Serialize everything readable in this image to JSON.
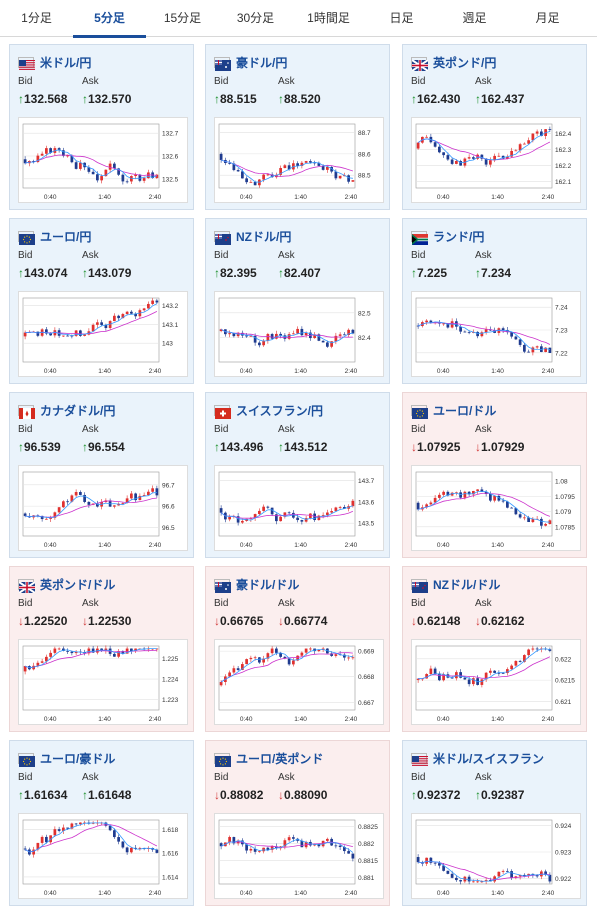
{
  "tabs": [
    {
      "label": "1分足",
      "active": false
    },
    {
      "label": "5分足",
      "active": true
    },
    {
      "label": "15分足",
      "active": false
    },
    {
      "label": "30分足",
      "active": false
    },
    {
      "label": "1時間足",
      "active": false
    },
    {
      "label": "日足",
      "active": false
    },
    {
      "label": "週足",
      "active": false
    },
    {
      "label": "月足",
      "active": false
    }
  ],
  "labels": {
    "bid": "Bid",
    "ask": "Ask"
  },
  "colors": {
    "up": "#1a8f2a",
    "down": "#d23a3a",
    "link": "#1a4e9b",
    "ma_long": "#cc33cc",
    "ma_short": "#3399ff"
  },
  "pairs": [
    {
      "name": "米ドル/円",
      "flag": "us",
      "direction": "up",
      "bid": "132.568",
      "ask": "132.570",
      "chart_data": {
        "type": "candlestick",
        "x_ticks": [
          "0:40",
          "1:40",
          "2:40"
        ],
        "y_ticks": [
          "132.7",
          "132.6",
          "132.5"
        ],
        "ylim": [
          132.46,
          132.74
        ]
      }
    },
    {
      "name": "豪ドル/円",
      "flag": "au",
      "direction": "up",
      "bid": "88.515",
      "ask": "88.520",
      "chart_data": {
        "type": "candlestick",
        "x_ticks": [
          "0:40",
          "1:40",
          "2:40"
        ],
        "y_ticks": [
          "88.7",
          "88.6",
          "88.5"
        ],
        "ylim": [
          88.44,
          88.74
        ]
      }
    },
    {
      "name": "英ポンド/円",
      "flag": "gb",
      "direction": "up",
      "bid": "162.430",
      "ask": "162.437",
      "chart_data": {
        "type": "candlestick",
        "x_ticks": [
          "0:40",
          "1:40",
          "2:40"
        ],
        "y_ticks": [
          "162.4",
          "162.3",
          "162.2",
          "162.1"
        ],
        "ylim": [
          162.06,
          162.46
        ]
      }
    },
    {
      "name": "ユーロ/円",
      "flag": "eu",
      "direction": "up",
      "bid": "143.074",
      "ask": "143.079",
      "chart_data": {
        "type": "candlestick",
        "x_ticks": [
          "0:40",
          "1:40",
          "2:40"
        ],
        "y_ticks": [
          "143.2",
          "143.1",
          "143"
        ],
        "ylim": [
          142.9,
          143.24
        ]
      }
    },
    {
      "name": "NZドル/円",
      "flag": "nz",
      "direction": "up",
      "bid": "82.395",
      "ask": "82.407",
      "chart_data": {
        "type": "candlestick",
        "x_ticks": [
          "0:40",
          "1:40",
          "2:40"
        ],
        "y_ticks": [
          "82.5",
          "82.4"
        ],
        "ylim": [
          82.3,
          82.56
        ]
      }
    },
    {
      "name": "ランド/円",
      "flag": "za",
      "direction": "up",
      "bid": "7.225",
      "ask": "7.234",
      "chart_data": {
        "type": "candlestick",
        "x_ticks": [
          "0:40",
          "1:40",
          "2:40"
        ],
        "y_ticks": [
          "7.24",
          "7.23",
          "7.22"
        ],
        "ylim": [
          7.216,
          7.244
        ]
      }
    },
    {
      "name": "カナダドル/円",
      "flag": "ca",
      "direction": "up",
      "bid": "96.539",
      "ask": "96.554",
      "chart_data": {
        "type": "candlestick",
        "x_ticks": [
          "0:40",
          "1:40",
          "2:40"
        ],
        "y_ticks": [
          "96.7",
          "96.6",
          "96.5"
        ],
        "ylim": [
          96.46,
          96.76
        ]
      }
    },
    {
      "name": "スイスフラン/円",
      "flag": "ch",
      "direction": "up",
      "bid": "143.496",
      "ask": "143.512",
      "chart_data": {
        "type": "candlestick",
        "x_ticks": [
          "0:40",
          "1:40",
          "2:40"
        ],
        "y_ticks": [
          "143.7",
          "143.6",
          "143.5"
        ],
        "ylim": [
          143.44,
          143.74
        ]
      }
    },
    {
      "name": "ユーロ/ドル",
      "flag": "eu",
      "direction": "down",
      "bid": "1.07925",
      "ask": "1.07929",
      "chart_data": {
        "type": "candlestick",
        "x_ticks": [
          "0:40",
          "1:40",
          "2:40"
        ],
        "y_ticks": [
          "1.08",
          "1.0795",
          "1.079",
          "1.0785"
        ],
        "ylim": [
          1.0782,
          1.0803
        ]
      }
    },
    {
      "name": "英ポンド/ドル",
      "flag": "gb",
      "direction": "down",
      "bid": "1.22520",
      "ask": "1.22530",
      "chart_data": {
        "type": "candlestick",
        "x_ticks": [
          "0:40",
          "1:40",
          "2:40"
        ],
        "y_ticks": [
          "1.225",
          "1.224",
          "1.223"
        ],
        "ylim": [
          1.2225,
          1.2256
        ]
      }
    },
    {
      "name": "豪ドル/ドル",
      "flag": "au",
      "direction": "down",
      "bid": "0.66765",
      "ask": "0.66774",
      "chart_data": {
        "type": "candlestick",
        "x_ticks": [
          "0:40",
          "1:40",
          "2:40"
        ],
        "y_ticks": [
          "0.669",
          "0.668",
          "0.667"
        ],
        "ylim": [
          0.6667,
          0.6692
        ]
      }
    },
    {
      "name": "NZドル/ドル",
      "flag": "nz",
      "direction": "down",
      "bid": "0.62148",
      "ask": "0.62162",
      "chart_data": {
        "type": "candlestick",
        "x_ticks": [
          "0:40",
          "1:40",
          "2:40"
        ],
        "y_ticks": [
          "0.622",
          "0.6215",
          "0.621"
        ],
        "ylim": [
          0.6208,
          0.6223
        ]
      }
    },
    {
      "name": "ユーロ/豪ドル",
      "flag": "eu",
      "direction": "up",
      "bid": "1.61634",
      "ask": "1.61648",
      "chart_data": {
        "type": "candlestick",
        "x_ticks": [
          "0:40",
          "1:40",
          "2:40"
        ],
        "y_ticks": [
          "1.618",
          "1.616",
          "1.614"
        ],
        "ylim": [
          1.6134,
          1.6188
        ]
      }
    },
    {
      "name": "ユーロ/英ポンド",
      "flag": "eu",
      "direction": "down",
      "bid": "0.88082",
      "ask": "0.88090",
      "chart_data": {
        "type": "candlestick",
        "x_ticks": [
          "0:40",
          "1:40",
          "2:40"
        ],
        "y_ticks": [
          "0.8825",
          "0.882",
          "0.8815",
          "0.881"
        ],
        "ylim": [
          0.8808,
          0.8827
        ]
      }
    },
    {
      "name": "米ドル/スイスフラン",
      "flag": "us",
      "direction": "up",
      "bid": "0.92372",
      "ask": "0.92387",
      "chart_data": {
        "type": "candlestick",
        "x_ticks": [
          "0:40",
          "1:40",
          "2:40"
        ],
        "y_ticks": [
          "0.924",
          "0.923",
          "0.922"
        ],
        "ylim": [
          0.9218,
          0.9242
        ]
      }
    }
  ]
}
